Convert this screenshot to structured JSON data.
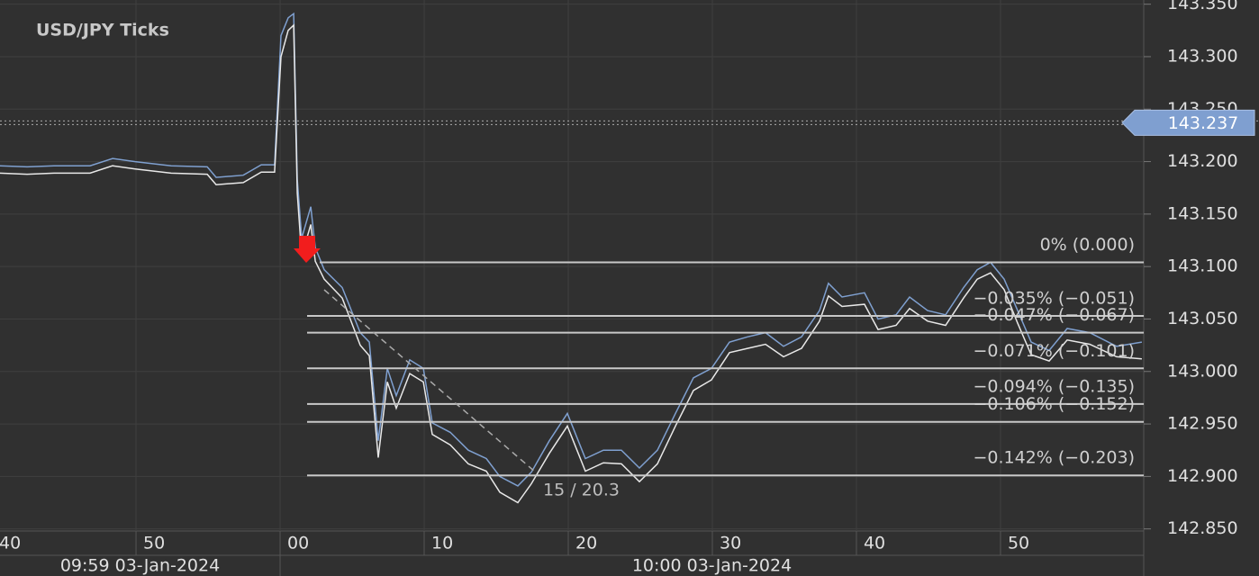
{
  "chart_data": {
    "type": "line",
    "title": "USD/JPY  Ticks",
    "x": [
      -19.44,
      -17.56,
      -15.69,
      -13.19,
      -11.63,
      -10.06,
      -7.56,
      -5.06,
      -4.44,
      -2.56,
      -1.31,
      -0.38,
      0.06,
      0.56,
      0.94,
      1.19,
      1.5,
      2.13,
      2.44,
      3.06,
      4.31,
      5.56,
      6.19,
      6.81,
      7.44,
      8.06,
      9,
      9.94,
      10.56,
      11.81,
      13.06,
      14.31,
      15.25,
      16.5,
      17.44,
      18.69,
      19.94,
      21.19,
      22.44,
      23.69,
      24.94,
      26.19,
      27.44,
      28.69,
      29.94,
      31.19,
      32.44,
      33.69,
      34.94,
      36.19,
      37.44,
      38.06,
      39,
      40.56,
      41.5,
      42.75,
      43.69,
      44.94,
      46.19,
      47.44,
      48.38,
      49.31,
      50.25,
      51.19,
      52.13,
      53.38,
      54.63,
      56.19,
      58.06,
      59.81
    ],
    "series": [
      {
        "color": "#7fa0d0",
        "values": [
          143.196,
          143.195,
          143.196,
          143.196,
          143.203,
          143.2,
          143.196,
          143.195,
          143.185,
          143.187,
          143.197,
          143.197,
          143.32,
          143.337,
          143.341,
          143.183,
          143.127,
          143.157,
          143.118,
          143.097,
          143.08,
          143.037,
          143.028,
          142.934,
          143.003,
          142.977,
          143.011,
          143.003,
          142.951,
          142.942,
          142.925,
          142.917,
          142.9,
          142.891,
          142.904,
          142.934,
          142.96,
          142.917,
          142.925,
          142.925,
          142.908,
          142.925,
          142.96,
          142.994,
          143.003,
          143.028,
          143.033,
          143.037,
          143.024,
          143.033,
          143.058,
          143.084,
          143.071,
          143.075,
          143.05,
          143.054,
          143.071,
          143.058,
          143.054,
          143.08,
          143.097,
          143.104,
          143.088,
          143.058,
          143.028,
          143.02,
          143.041,
          143.037,
          143.024,
          143.028
        ]
      },
      {
        "color": "#e8e8e8",
        "values": [
          143.189,
          143.188,
          143.189,
          143.189,
          143.196,
          143.193,
          143.189,
          143.188,
          143.178,
          143.18,
          143.19,
          143.19,
          143.3,
          143.325,
          143.33,
          143.17,
          143.11,
          143.14,
          143.105,
          143.088,
          143.07,
          143.025,
          143.015,
          142.918,
          142.99,
          142.965,
          142.998,
          142.99,
          142.94,
          142.93,
          142.912,
          142.905,
          142.885,
          142.875,
          142.893,
          142.922,
          142.948,
          142.905,
          142.913,
          142.912,
          142.895,
          142.912,
          142.948,
          142.982,
          142.992,
          143.018,
          143.022,
          143.026,
          143.014,
          143.022,
          143.048,
          143.072,
          143.062,
          143.064,
          143.04,
          143.044,
          143.06,
          143.048,
          143.044,
          143.07,
          143.088,
          143.094,
          143.078,
          143.046,
          143.016,
          143.01,
          143.03,
          143.026,
          143.014,
          143.012
        ]
      }
    ],
    "xlim": [
      -19.44,
      59.94
    ],
    "ylim": [
      142.848,
      143.354
    ],
    "xticks": [
      {
        "value": -20,
        "label": "40"
      },
      {
        "value": -10,
        "label": "50"
      },
      {
        "value": 0,
        "label": "00"
      },
      10,
      20,
      30,
      40,
      50
    ],
    "x_group_labels": [
      "09:59 03-Jan-2024",
      "10:00 03-Jan-2024"
    ],
    "yticks": [
      {
        "value": 142.85,
        "label": "142.850"
      },
      {
        "value": 142.9,
        "label": "142.900"
      },
      {
        "value": 142.95,
        "label": "142.950"
      },
      {
        "value": 143.0,
        "label": "143.000"
      },
      {
        "value": 143.05,
        "label": "143.050"
      },
      {
        "value": 143.1,
        "label": "143.100"
      },
      {
        "value": 143.15,
        "label": "143.150"
      },
      {
        "value": 143.2,
        "label": "143.200"
      },
      {
        "value": 143.25,
        "label": "143.250"
      },
      {
        "value": 143.3,
        "label": "143.300"
      },
      {
        "value": 143.35,
        "label": "143.350"
      }
    ],
    "grid": true,
    "last_price": 143.237,
    "levels": [
      {
        "value": 143.104,
        "label": "0% (0.000)"
      },
      {
        "value": 143.053,
        "label": "−0.035% (−0.051)"
      },
      {
        "value": 143.037,
        "label": "−0.047% (−0.067)"
      },
      {
        "value": 143.003,
        "label": "−0.071% (−0.101)"
      },
      {
        "value": 142.969,
        "label": "−0.094% (−0.135)"
      },
      {
        "value": 142.952,
        "label": "−0.106% (−0.152)"
      },
      {
        "value": 142.901,
        "label": "−0.142% (−0.203)"
      }
    ],
    "annotation": "15 / 20.3"
  }
}
